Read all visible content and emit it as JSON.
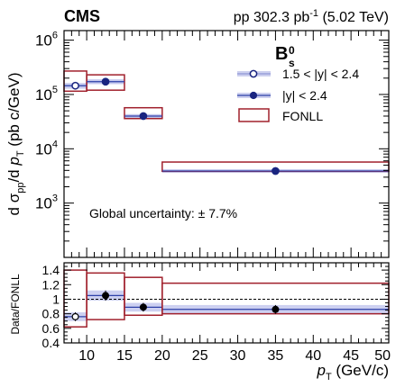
{
  "header": {
    "experiment": "CMS",
    "lumi_prefix": "pp 302.3 pb",
    "lumi_exp": "-1",
    "lumi_suffix": " (5.02 TeV)"
  },
  "particle": {
    "base": "B",
    "sub": "s",
    "sup": "0"
  },
  "legend": {
    "items": [
      {
        "label": "1.5 < |y| < 2.4",
        "marker": "open-circle"
      },
      {
        "label": "|y| < 2.4",
        "marker": "filled-circle"
      },
      {
        "label": "FONLL",
        "marker": "box"
      }
    ]
  },
  "annotation": "Global uncertainty: ± 7.7%",
  "ylabel_top": {
    "pre": "d σ",
    "sub1": "pp",
    "mid": "/d ",
    "pt": "p",
    "sub2": "T",
    "post": " (pb c/GeV)"
  },
  "ylabel_bottom": "Data/FONLL",
  "xlabel": {
    "pt": "p",
    "sub": "T",
    "post": " (GeV/c)"
  },
  "colors": {
    "fonll": "#a0202c",
    "data_band": "#b8bce8",
    "data_line": "#2d3fa8",
    "axis": "#000000",
    "ratio_band": "#c8cbef"
  },
  "chart_data": [
    {
      "type": "scatter",
      "panel": "top",
      "xlim": [
        7,
        50
      ],
      "ylim": [
        100,
        1500000
      ],
      "yscale": "log",
      "x_ticks": [
        10,
        15,
        20,
        25,
        30,
        35,
        40,
        45,
        50
      ],
      "y_ticks": [
        {
          "value": 1000,
          "base": "10",
          "exp": "3"
        },
        {
          "value": 10000,
          "base": "10",
          "exp": "4"
        },
        {
          "value": 100000,
          "base": "10",
          "exp": "5"
        },
        {
          "value": 1000000,
          "base": "10",
          "exp": "6"
        }
      ],
      "series": [
        {
          "name": "1.5 < |y| < 2.4",
          "marker": "open",
          "points": [
            {
              "x": 8.5,
              "xlow": 7,
              "xhigh": 10,
              "y": 145000,
              "ylow": 128000,
              "yhigh": 162000
            }
          ]
        },
        {
          "name": "|y| < 2.4",
          "marker": "filled",
          "points": [
            {
              "x": 12.5,
              "xlow": 10,
              "xhigh": 15,
              "y": 172000,
              "ylow": 155000,
              "yhigh": 190000
            },
            {
              "x": 17.5,
              "xlow": 15,
              "xhigh": 20,
              "y": 40000,
              "ylow": 36500,
              "yhigh": 43500
            },
            {
              "x": 35,
              "xlow": 20,
              "xhigh": 50,
              "y": 3900,
              "ylow": 3600,
              "yhigh": 4200
            }
          ]
        },
        {
          "name": "FONLL",
          "marker": "box",
          "boxes": [
            {
              "xlow": 7,
              "xhigh": 10,
              "ylow": 115000,
              "yhigh": 270000
            },
            {
              "xlow": 10,
              "xhigh": 15,
              "ylow": 120000,
              "yhigh": 230000
            },
            {
              "xlow": 15,
              "xhigh": 20,
              "ylow": 36000,
              "yhigh": 57000
            },
            {
              "xlow": 20,
              "xhigh": 50,
              "ylow": 3850,
              "yhigh": 5700
            }
          ]
        }
      ]
    },
    {
      "type": "scatter",
      "panel": "ratio",
      "xlim": [
        7,
        50
      ],
      "ylim": [
        0.4,
        1.5
      ],
      "y_ticks": [
        0.4,
        0.6,
        0.8,
        1,
        1.2,
        1.4
      ],
      "y_tick_labels": [
        "0.4",
        "0.6",
        "0.8",
        "1",
        "1.2",
        "1.4"
      ],
      "x_ticks": [
        10,
        15,
        20,
        25,
        30,
        35,
        40,
        45,
        50
      ],
      "x_tick_labels": [
        "10",
        "15",
        "20",
        "25",
        "30",
        "35",
        "40",
        "45",
        "50"
      ],
      "reference_line": 1,
      "series": [
        {
          "name": "1.5 < |y| < 2.4",
          "marker": "open",
          "points": [
            {
              "x": 8.5,
              "xlow": 7,
              "xhigh": 10,
              "y": 0.76,
              "ylow": 0.7,
              "yhigh": 0.82
            }
          ]
        },
        {
          "name": "|y| < 2.4",
          "marker": "filled",
          "points": [
            {
              "x": 12.5,
              "xlow": 10,
              "xhigh": 15,
              "y": 1.05,
              "ylow": 0.98,
              "yhigh": 1.12
            },
            {
              "x": 17.5,
              "xlow": 15,
              "xhigh": 20,
              "y": 0.89,
              "ylow": 0.83,
              "yhigh": 0.95
            },
            {
              "x": 35,
              "xlow": 20,
              "xhigh": 50,
              "y": 0.86,
              "ylow": 0.8,
              "yhigh": 0.92
            }
          ]
        },
        {
          "name": "FONLL",
          "marker": "box",
          "boxes": [
            {
              "xlow": 7,
              "xhigh": 10,
              "ylow": 0.62,
              "yhigh": 1.4
            },
            {
              "xlow": 10,
              "xhigh": 15,
              "ylow": 0.72,
              "yhigh": 1.36
            },
            {
              "xlow": 15,
              "xhigh": 20,
              "ylow": 0.78,
              "yhigh": 1.3
            },
            {
              "xlow": 20,
              "xhigh": 50,
              "ylow": 0.8,
              "yhigh": 1.22
            }
          ]
        }
      ]
    }
  ]
}
